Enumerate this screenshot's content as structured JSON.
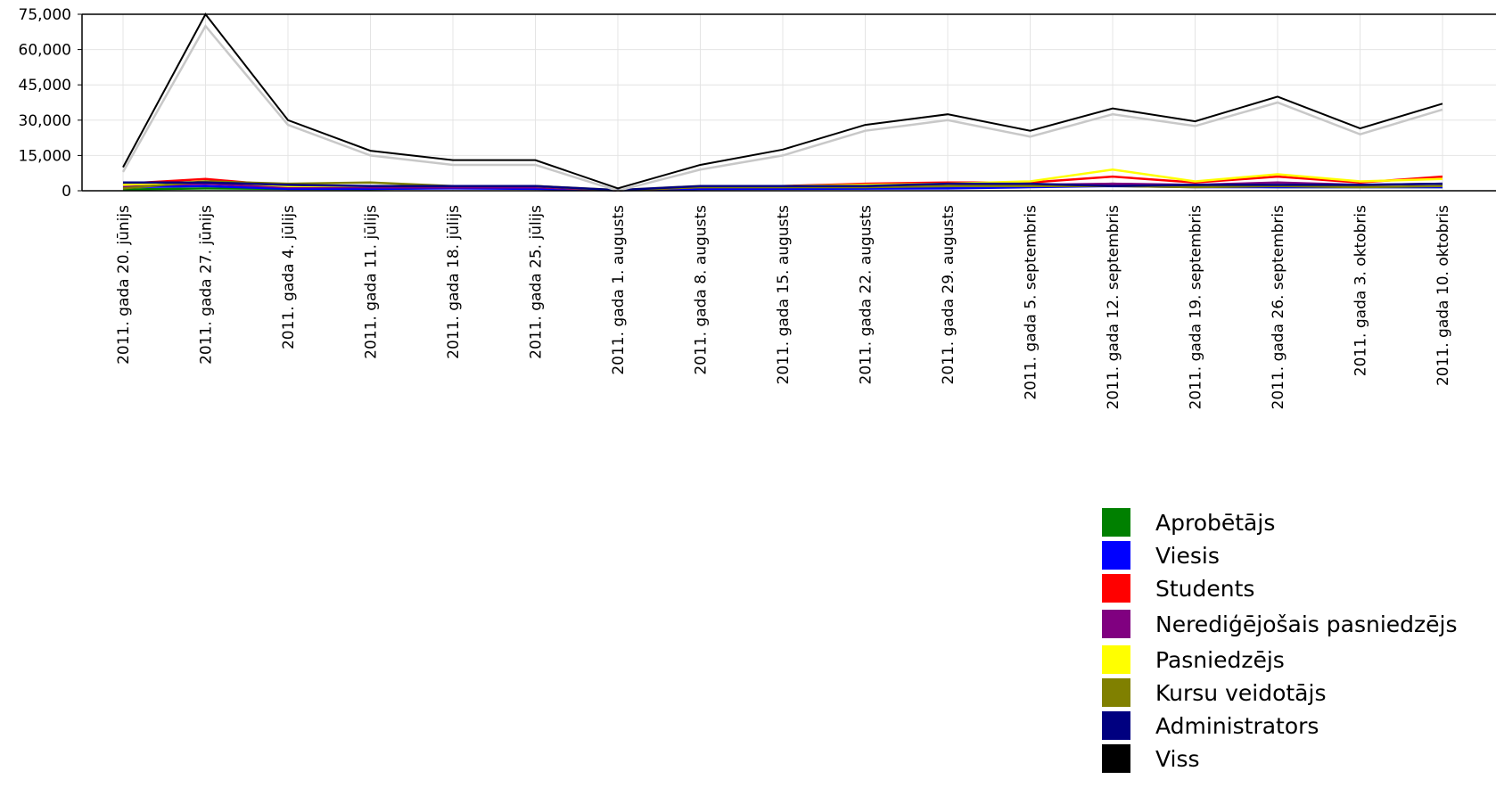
{
  "chart_data": {
    "type": "line",
    "x": [
      "2011. gada  20. jūnijs",
      "2011. gada  27. jūnijs",
      "2011. gada 4. jūlijs",
      "2011. gada  11. jūlijs",
      "2011. gada  18. jūlijs",
      "2011. gada  25. jūlijs",
      "2011. gada 1. augusts",
      "2011. gada 8. augusts",
      "2011. gada  15. augusts",
      "2011. gada  22. augusts",
      "2011. gada  29. augusts",
      "2011. gada 5. septembris",
      "2011. gada  12. septembris",
      "2011. gada  19. septembris",
      "2011. gada  26. septembris",
      "2011. gada 3. oktobris",
      "2011. gada  10. oktobris"
    ],
    "yticks": [
      "75,000",
      "60,000",
      "45,000",
      "30,000",
      "15,000",
      "0"
    ],
    "ylim": [
      0,
      75000
    ],
    "grid": true,
    "legend_position": "bottom-right",
    "series": [
      {
        "name": "Aprobētājs",
        "color": "#008000",
        "values": [
          500,
          1000,
          800,
          700,
          1200,
          900,
          200,
          1000,
          1000,
          1000,
          1500,
          2000,
          3000,
          2000,
          1500,
          1500,
          1500
        ]
      },
      {
        "name": "Viesis",
        "color": "#0000ff",
        "values": [
          1500,
          2000,
          800,
          800,
          1000,
          800,
          200,
          700,
          800,
          900,
          1000,
          1500,
          2000,
          1500,
          1500,
          1500,
          1500
        ]
      },
      {
        "name": "Students",
        "color": "#ff0000",
        "values": [
          3000,
          5000,
          2000,
          1500,
          1500,
          1500,
          200,
          1500,
          2000,
          3000,
          3500,
          3500,
          6000,
          3500,
          6000,
          3500,
          6000
        ]
      },
      {
        "name": "Nerediģējošais pasniedzējs",
        "color": "#800080",
        "values": [
          2000,
          3000,
          1500,
          1500,
          1500,
          1500,
          200,
          1500,
          1500,
          2000,
          2500,
          2500,
          3000,
          2500,
          3500,
          2500,
          3000
        ]
      },
      {
        "name": "Pasniedzējs",
        "color": "#ffff00",
        "values": [
          2500,
          4000,
          2000,
          2000,
          2000,
          2000,
          300,
          2000,
          2000,
          2500,
          3000,
          4000,
          9000,
          4000,
          7000,
          4000,
          5000
        ]
      },
      {
        "name": "Kursu veidotājs",
        "color": "#808000",
        "values": [
          1000,
          4000,
          3000,
          3500,
          2000,
          2000,
          200,
          1500,
          1500,
          1500,
          2000,
          2000,
          2000,
          1500,
          2000,
          1500,
          2000
        ]
      },
      {
        "name": "Administrators",
        "color": "#000080",
        "values": [
          3500,
          3500,
          2500,
          2000,
          2000,
          2000,
          300,
          2000,
          2000,
          2000,
          3000,
          3000,
          2000,
          2500,
          2500,
          2500,
          3000
        ]
      },
      {
        "name": "Viss",
        "color": "#000000",
        "values": [
          10000,
          75000,
          30000,
          17000,
          13000,
          13000,
          1000,
          11000,
          17500,
          28000,
          32500,
          25500,
          35000,
          29500,
          40000,
          26500,
          37000
        ]
      },
      {
        "name": "",
        "color": "#c8c8c8",
        "values": [
          8000,
          70000,
          28000,
          15000,
          11000,
          11000,
          0,
          9000,
          15000,
          25500,
          30000,
          23000,
          32500,
          27500,
          37500,
          24000,
          34500
        ]
      }
    ]
  }
}
